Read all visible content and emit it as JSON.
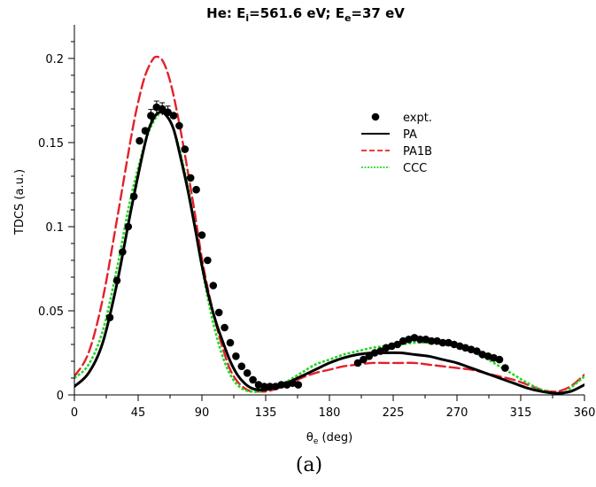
{
  "chart_data": {
    "type": "line",
    "title": {
      "prefix": "He: E",
      "sub1": "i",
      "mid": "=561.6 eV; E",
      "sub2": "e",
      "suffix": "=37 eV"
    },
    "xlabel": {
      "main": "θ",
      "sub": "e",
      "rest": " (deg)"
    },
    "ylabel": "TDCS (a.u.)",
    "caption": "(a)",
    "xlim": [
      0,
      360
    ],
    "ylim": [
      0,
      0.22
    ],
    "xticks": [
      0,
      45,
      90,
      135,
      180,
      225,
      270,
      315,
      360
    ],
    "xtick_labels": [
      "0",
      "45",
      "90",
      "135",
      "180",
      "225",
      "270",
      "315",
      "360"
    ],
    "yticks": [
      0,
      0.05,
      0.1,
      0.15,
      0.2
    ],
    "ytick_labels": [
      "0",
      "0.05",
      "0.1",
      "0.15",
      "0.2"
    ],
    "legend_position": "upper-right",
    "series": [
      {
        "name": "expt.",
        "kind": "points",
        "color": "#000000",
        "points": [
          [
            25,
            0.046
          ],
          [
            30,
            0.068
          ],
          [
            34,
            0.085
          ],
          [
            38,
            0.1
          ],
          [
            42,
            0.118
          ],
          [
            46,
            0.151
          ],
          [
            50,
            0.157
          ],
          [
            54,
            0.166
          ],
          [
            58,
            0.171
          ],
          [
            62,
            0.17
          ],
          [
            66,
            0.168
          ],
          [
            70,
            0.166
          ],
          [
            74,
            0.16
          ],
          [
            78,
            0.146
          ],
          [
            82,
            0.129
          ],
          [
            86,
            0.122
          ],
          [
            90,
            0.095
          ],
          [
            94,
            0.08
          ],
          [
            98,
            0.065
          ],
          [
            102,
            0.049
          ],
          [
            106,
            0.04
          ],
          [
            110,
            0.031
          ],
          [
            114,
            0.023
          ],
          [
            118,
            0.017
          ],
          [
            122,
            0.013
          ],
          [
            126,
            0.009
          ],
          [
            130,
            0.006
          ],
          [
            134,
            0.005
          ],
          [
            138,
            0.005
          ],
          [
            142,
            0.005
          ],
          [
            146,
            0.006
          ],
          [
            150,
            0.006
          ],
          [
            154,
            0.007
          ],
          [
            158,
            0.006
          ],
          [
            200,
            0.019
          ],
          [
            204,
            0.021
          ],
          [
            208,
            0.023
          ],
          [
            212,
            0.025
          ],
          [
            216,
            0.026
          ],
          [
            220,
            0.028
          ],
          [
            224,
            0.029
          ],
          [
            228,
            0.03
          ],
          [
            232,
            0.032
          ],
          [
            236,
            0.033
          ],
          [
            240,
            0.034
          ],
          [
            244,
            0.033
          ],
          [
            248,
            0.033
          ],
          [
            252,
            0.032
          ],
          [
            256,
            0.032
          ],
          [
            260,
            0.031
          ],
          [
            264,
            0.031
          ],
          [
            268,
            0.03
          ],
          [
            272,
            0.029
          ],
          [
            276,
            0.028
          ],
          [
            280,
            0.027
          ],
          [
            284,
            0.026
          ],
          [
            288,
            0.024
          ],
          [
            292,
            0.023
          ],
          [
            296,
            0.022
          ],
          [
            300,
            0.021
          ],
          [
            304,
            0.016
          ]
        ]
      },
      {
        "name": "PA",
        "kind": "line",
        "color": "#000000",
        "dash": "solid",
        "points": [
          [
            0,
            0.005
          ],
          [
            10,
            0.013
          ],
          [
            20,
            0.031
          ],
          [
            30,
            0.066
          ],
          [
            40,
            0.11
          ],
          [
            50,
            0.15
          ],
          [
            55,
            0.163
          ],
          [
            60,
            0.168
          ],
          [
            65,
            0.166
          ],
          [
            70,
            0.158
          ],
          [
            75,
            0.141
          ],
          [
            80,
            0.122
          ],
          [
            85,
            0.1
          ],
          [
            90,
            0.077
          ],
          [
            95,
            0.058
          ],
          [
            100,
            0.043
          ],
          [
            105,
            0.031
          ],
          [
            110,
            0.02
          ],
          [
            115,
            0.012
          ],
          [
            120,
            0.007
          ],
          [
            125,
            0.004
          ],
          [
            130,
            0.003
          ],
          [
            135,
            0.003
          ],
          [
            140,
            0.004
          ],
          [
            145,
            0.005
          ],
          [
            150,
            0.007
          ],
          [
            160,
            0.011
          ],
          [
            170,
            0.015
          ],
          [
            180,
            0.019
          ],
          [
            190,
            0.022
          ],
          [
            200,
            0.024
          ],
          [
            210,
            0.025
          ],
          [
            220,
            0.025
          ],
          [
            230,
            0.025
          ],
          [
            240,
            0.024
          ],
          [
            250,
            0.023
          ],
          [
            260,
            0.021
          ],
          [
            270,
            0.019
          ],
          [
            280,
            0.016
          ],
          [
            290,
            0.013
          ],
          [
            300,
            0.01
          ],
          [
            310,
            0.007
          ],
          [
            320,
            0.004
          ],
          [
            330,
            0.002
          ],
          [
            340,
            0.001
          ],
          [
            350,
            0.002
          ],
          [
            360,
            0.006
          ]
        ]
      },
      {
        "name": "PA1B",
        "kind": "line",
        "color": "#e4202a",
        "dash": "long-dash",
        "points": [
          [
            0,
            0.011
          ],
          [
            10,
            0.025
          ],
          [
            20,
            0.057
          ],
          [
            30,
            0.104
          ],
          [
            40,
            0.153
          ],
          [
            45,
            0.174
          ],
          [
            50,
            0.19
          ],
          [
            55,
            0.199
          ],
          [
            58,
            0.201
          ],
          [
            62,
            0.199
          ],
          [
            66,
            0.191
          ],
          [
            70,
            0.178
          ],
          [
            75,
            0.157
          ],
          [
            80,
            0.133
          ],
          [
            85,
            0.108
          ],
          [
            90,
            0.081
          ],
          [
            95,
            0.06
          ],
          [
            100,
            0.042
          ],
          [
            105,
            0.027
          ],
          [
            110,
            0.015
          ],
          [
            115,
            0.008
          ],
          [
            120,
            0.004
          ],
          [
            125,
            0.002
          ],
          [
            130,
            0.002
          ],
          [
            135,
            0.002
          ],
          [
            140,
            0.003
          ],
          [
            150,
            0.006
          ],
          [
            160,
            0.01
          ],
          [
            170,
            0.013
          ],
          [
            180,
            0.015
          ],
          [
            190,
            0.017
          ],
          [
            200,
            0.018
          ],
          [
            210,
            0.019
          ],
          [
            220,
            0.019
          ],
          [
            230,
            0.019
          ],
          [
            240,
            0.019
          ],
          [
            250,
            0.018
          ],
          [
            260,
            0.017
          ],
          [
            270,
            0.016
          ],
          [
            280,
            0.015
          ],
          [
            290,
            0.013
          ],
          [
            300,
            0.011
          ],
          [
            310,
            0.009
          ],
          [
            320,
            0.006
          ],
          [
            330,
            0.003
          ],
          [
            340,
            0.002
          ],
          [
            350,
            0.005
          ],
          [
            360,
            0.012
          ]
        ]
      },
      {
        "name": "CCC",
        "kind": "line",
        "color": "#22d822",
        "dash": "dotted",
        "points": [
          [
            0,
            0.01
          ],
          [
            10,
            0.018
          ],
          [
            20,
            0.038
          ],
          [
            30,
            0.075
          ],
          [
            40,
            0.118
          ],
          [
            50,
            0.15
          ],
          [
            55,
            0.161
          ],
          [
            60,
            0.167
          ],
          [
            65,
            0.166
          ],
          [
            70,
            0.158
          ],
          [
            75,
            0.143
          ],
          [
            80,
            0.124
          ],
          [
            85,
            0.101
          ],
          [
            90,
            0.076
          ],
          [
            95,
            0.054
          ],
          [
            100,
            0.036
          ],
          [
            105,
            0.022
          ],
          [
            110,
            0.012
          ],
          [
            115,
            0.006
          ],
          [
            120,
            0.003
          ],
          [
            125,
            0.002
          ],
          [
            130,
            0.002
          ],
          [
            135,
            0.003
          ],
          [
            140,
            0.004
          ],
          [
            150,
            0.008
          ],
          [
            160,
            0.013
          ],
          [
            170,
            0.018
          ],
          [
            180,
            0.021
          ],
          [
            190,
            0.024
          ],
          [
            200,
            0.026
          ],
          [
            210,
            0.028
          ],
          [
            220,
            0.029
          ],
          [
            230,
            0.03
          ],
          [
            240,
            0.031
          ],
          [
            250,
            0.031
          ],
          [
            260,
            0.03
          ],
          [
            270,
            0.029
          ],
          [
            280,
            0.026
          ],
          [
            290,
            0.022
          ],
          [
            300,
            0.017
          ],
          [
            310,
            0.012
          ],
          [
            320,
            0.007
          ],
          [
            330,
            0.003
          ],
          [
            340,
            0.001
          ],
          [
            345,
            0.001
          ],
          [
            350,
            0.004
          ],
          [
            360,
            0.011
          ]
        ]
      }
    ]
  }
}
